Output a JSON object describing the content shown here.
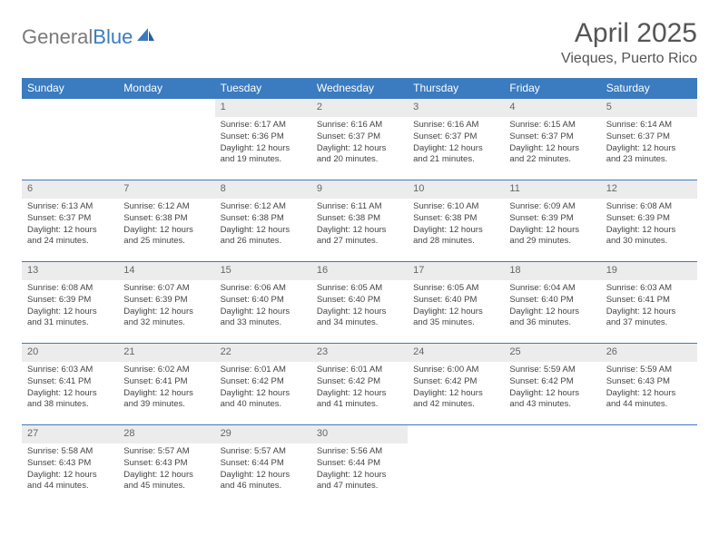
{
  "logo": {
    "text1": "General",
    "text2": "Blue"
  },
  "title": "April 2025",
  "location": "Vieques, Puerto Rico",
  "weekdays": [
    "Sunday",
    "Monday",
    "Tuesday",
    "Wednesday",
    "Thursday",
    "Friday",
    "Saturday"
  ],
  "colors": {
    "header_bg": "#3b7bbf",
    "header_text": "#ffffff",
    "daynum_bg": "#ececec",
    "border": "#3b7bbf",
    "logo_gray": "#7a7a7a",
    "logo_blue": "#3b7bbf"
  },
  "weeks": [
    [
      {
        "num": "",
        "lines": [
          "",
          "",
          ""
        ]
      },
      {
        "num": "",
        "lines": [
          "",
          "",
          ""
        ]
      },
      {
        "num": "1",
        "lines": [
          "Sunrise: 6:17 AM",
          "Sunset: 6:36 PM",
          "Daylight: 12 hours and 19 minutes."
        ]
      },
      {
        "num": "2",
        "lines": [
          "Sunrise: 6:16 AM",
          "Sunset: 6:37 PM",
          "Daylight: 12 hours and 20 minutes."
        ]
      },
      {
        "num": "3",
        "lines": [
          "Sunrise: 6:16 AM",
          "Sunset: 6:37 PM",
          "Daylight: 12 hours and 21 minutes."
        ]
      },
      {
        "num": "4",
        "lines": [
          "Sunrise: 6:15 AM",
          "Sunset: 6:37 PM",
          "Daylight: 12 hours and 22 minutes."
        ]
      },
      {
        "num": "5",
        "lines": [
          "Sunrise: 6:14 AM",
          "Sunset: 6:37 PM",
          "Daylight: 12 hours and 23 minutes."
        ]
      }
    ],
    [
      {
        "num": "6",
        "lines": [
          "Sunrise: 6:13 AM",
          "Sunset: 6:37 PM",
          "Daylight: 12 hours and 24 minutes."
        ]
      },
      {
        "num": "7",
        "lines": [
          "Sunrise: 6:12 AM",
          "Sunset: 6:38 PM",
          "Daylight: 12 hours and 25 minutes."
        ]
      },
      {
        "num": "8",
        "lines": [
          "Sunrise: 6:12 AM",
          "Sunset: 6:38 PM",
          "Daylight: 12 hours and 26 minutes."
        ]
      },
      {
        "num": "9",
        "lines": [
          "Sunrise: 6:11 AM",
          "Sunset: 6:38 PM",
          "Daylight: 12 hours and 27 minutes."
        ]
      },
      {
        "num": "10",
        "lines": [
          "Sunrise: 6:10 AM",
          "Sunset: 6:38 PM",
          "Daylight: 12 hours and 28 minutes."
        ]
      },
      {
        "num": "11",
        "lines": [
          "Sunrise: 6:09 AM",
          "Sunset: 6:39 PM",
          "Daylight: 12 hours and 29 minutes."
        ]
      },
      {
        "num": "12",
        "lines": [
          "Sunrise: 6:08 AM",
          "Sunset: 6:39 PM",
          "Daylight: 12 hours and 30 minutes."
        ]
      }
    ],
    [
      {
        "num": "13",
        "lines": [
          "Sunrise: 6:08 AM",
          "Sunset: 6:39 PM",
          "Daylight: 12 hours and 31 minutes."
        ]
      },
      {
        "num": "14",
        "lines": [
          "Sunrise: 6:07 AM",
          "Sunset: 6:39 PM",
          "Daylight: 12 hours and 32 minutes."
        ]
      },
      {
        "num": "15",
        "lines": [
          "Sunrise: 6:06 AM",
          "Sunset: 6:40 PM",
          "Daylight: 12 hours and 33 minutes."
        ]
      },
      {
        "num": "16",
        "lines": [
          "Sunrise: 6:05 AM",
          "Sunset: 6:40 PM",
          "Daylight: 12 hours and 34 minutes."
        ]
      },
      {
        "num": "17",
        "lines": [
          "Sunrise: 6:05 AM",
          "Sunset: 6:40 PM",
          "Daylight: 12 hours and 35 minutes."
        ]
      },
      {
        "num": "18",
        "lines": [
          "Sunrise: 6:04 AM",
          "Sunset: 6:40 PM",
          "Daylight: 12 hours and 36 minutes."
        ]
      },
      {
        "num": "19",
        "lines": [
          "Sunrise: 6:03 AM",
          "Sunset: 6:41 PM",
          "Daylight: 12 hours and 37 minutes."
        ]
      }
    ],
    [
      {
        "num": "20",
        "lines": [
          "Sunrise: 6:03 AM",
          "Sunset: 6:41 PM",
          "Daylight: 12 hours and 38 minutes."
        ]
      },
      {
        "num": "21",
        "lines": [
          "Sunrise: 6:02 AM",
          "Sunset: 6:41 PM",
          "Daylight: 12 hours and 39 minutes."
        ]
      },
      {
        "num": "22",
        "lines": [
          "Sunrise: 6:01 AM",
          "Sunset: 6:42 PM",
          "Daylight: 12 hours and 40 minutes."
        ]
      },
      {
        "num": "23",
        "lines": [
          "Sunrise: 6:01 AM",
          "Sunset: 6:42 PM",
          "Daylight: 12 hours and 41 minutes."
        ]
      },
      {
        "num": "24",
        "lines": [
          "Sunrise: 6:00 AM",
          "Sunset: 6:42 PM",
          "Daylight: 12 hours and 42 minutes."
        ]
      },
      {
        "num": "25",
        "lines": [
          "Sunrise: 5:59 AM",
          "Sunset: 6:42 PM",
          "Daylight: 12 hours and 43 minutes."
        ]
      },
      {
        "num": "26",
        "lines": [
          "Sunrise: 5:59 AM",
          "Sunset: 6:43 PM",
          "Daylight: 12 hours and 44 minutes."
        ]
      }
    ],
    [
      {
        "num": "27",
        "lines": [
          "Sunrise: 5:58 AM",
          "Sunset: 6:43 PM",
          "Daylight: 12 hours and 44 minutes."
        ]
      },
      {
        "num": "28",
        "lines": [
          "Sunrise: 5:57 AM",
          "Sunset: 6:43 PM",
          "Daylight: 12 hours and 45 minutes."
        ]
      },
      {
        "num": "29",
        "lines": [
          "Sunrise: 5:57 AM",
          "Sunset: 6:44 PM",
          "Daylight: 12 hours and 46 minutes."
        ]
      },
      {
        "num": "30",
        "lines": [
          "Sunrise: 5:56 AM",
          "Sunset: 6:44 PM",
          "Daylight: 12 hours and 47 minutes."
        ]
      },
      {
        "num": "",
        "lines": [
          "",
          "",
          ""
        ]
      },
      {
        "num": "",
        "lines": [
          "",
          "",
          ""
        ]
      },
      {
        "num": "",
        "lines": [
          "",
          "",
          ""
        ]
      }
    ]
  ]
}
